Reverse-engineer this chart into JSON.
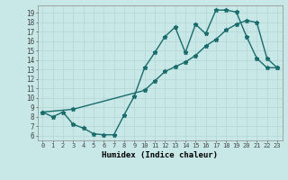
{
  "xlabel": "Humidex (Indice chaleur)",
  "bg_color": "#c8e8e8",
  "grid_color": "#b8d8d8",
  "line_color": "#1a6b6b",
  "marker": "*",
  "marker_size": 3.5,
  "line_width": 1.0,
  "xlim": [
    -0.5,
    23.5
  ],
  "ylim": [
    5.5,
    19.8
  ],
  "xticks": [
    0,
    1,
    2,
    3,
    4,
    5,
    6,
    7,
    8,
    9,
    10,
    11,
    12,
    13,
    14,
    15,
    16,
    17,
    18,
    19,
    20,
    21,
    22,
    23
  ],
  "yticks": [
    6,
    7,
    8,
    9,
    10,
    11,
    12,
    13,
    14,
    15,
    16,
    17,
    18,
    19
  ],
  "line1_x": [
    0,
    1,
    2,
    3,
    4,
    5,
    6,
    7,
    8,
    9,
    10,
    11,
    12,
    13,
    14,
    15,
    16,
    17,
    18,
    19,
    20,
    21,
    22,
    23
  ],
  "line1_y": [
    8.5,
    8.0,
    8.5,
    7.2,
    6.8,
    6.2,
    6.1,
    6.1,
    8.2,
    10.2,
    13.2,
    14.8,
    16.5,
    17.5,
    14.8,
    17.8,
    16.8,
    19.3,
    19.3,
    19.1,
    16.5,
    14.2,
    13.2,
    13.2
  ],
  "line2_x": [
    0,
    3,
    10,
    11,
    12,
    13,
    14,
    15,
    16,
    17,
    18,
    19,
    20,
    21,
    22,
    23
  ],
  "line2_y": [
    8.5,
    8.8,
    10.8,
    11.8,
    12.8,
    13.3,
    13.8,
    14.5,
    15.5,
    16.2,
    17.2,
    17.8,
    18.2,
    18.0,
    14.2,
    13.2
  ]
}
